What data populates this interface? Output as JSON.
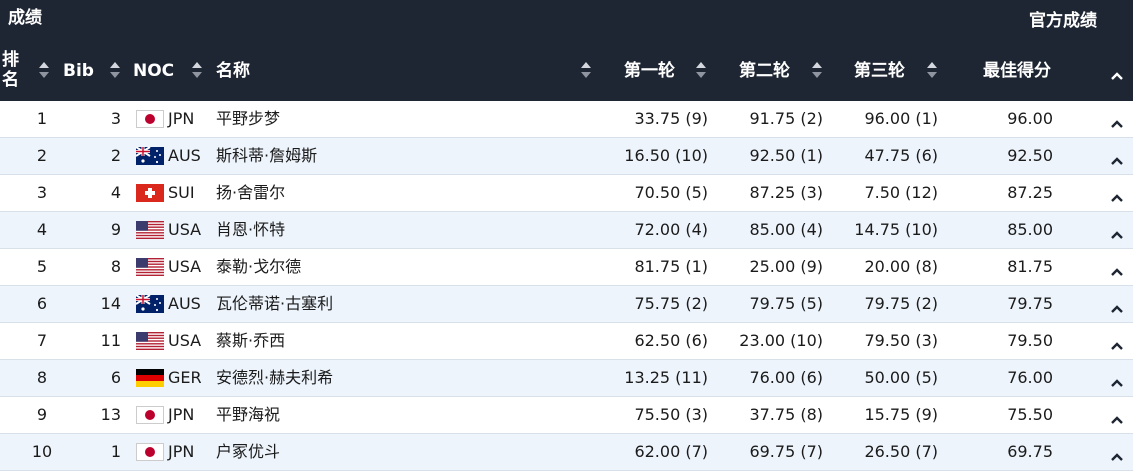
{
  "header": {
    "title": "成绩",
    "official": "官方成绩"
  },
  "table": {
    "columns": [
      "排名",
      "Bib",
      "NOC",
      "名称",
      "第一轮",
      "第二轮",
      "第三轮",
      "最佳得分"
    ],
    "rows": [
      [
        "1",
        "3",
        "JPN",
        "平野步梦",
        "33.75 (9)",
        "91.75 (2)",
        "96.00 (1)",
        "96.00"
      ],
      [
        "2",
        "2",
        "AUS",
        "斯科蒂·詹姆斯",
        "16.50 (10)",
        "92.50 (1)",
        "47.75 (6)",
        "92.50"
      ],
      [
        "3",
        "4",
        "SUI",
        "扬·舍雷尔",
        "70.50 (5)",
        "87.25 (3)",
        "7.50 (12)",
        "87.25"
      ],
      [
        "4",
        "9",
        "USA",
        "肖恩·怀特",
        "72.00 (4)",
        "85.00 (4)",
        "14.75 (10)",
        "85.00"
      ],
      [
        "5",
        "8",
        "USA",
        "泰勒·戈尔德",
        "81.75 (1)",
        "25.00 (9)",
        "20.00 (8)",
        "81.75"
      ],
      [
        "6",
        "14",
        "AUS",
        "瓦伦蒂诺·古塞利",
        "75.75 (2)",
        "79.75 (5)",
        "79.75 (2)",
        "79.75"
      ],
      [
        "7",
        "11",
        "USA",
        "蔡斯·乔西",
        "62.50 (6)",
        "23.00 (10)",
        "79.50 (3)",
        "79.50"
      ],
      [
        "8",
        "6",
        "GER",
        "安德烈·赫夫利希",
        "13.25 (11)",
        "76.00 (6)",
        "50.00 (5)",
        "76.00"
      ],
      [
        "9",
        "13",
        "JPN",
        "平野海祝",
        "75.50 (3)",
        "37.75 (8)",
        "15.75 (9)",
        "75.50"
      ],
      [
        "10",
        "1",
        "JPN",
        "户冢优斗",
        "62.00 (7)",
        "69.75 (7)",
        "26.50 (7)",
        "69.75"
      ]
    ]
  }
}
